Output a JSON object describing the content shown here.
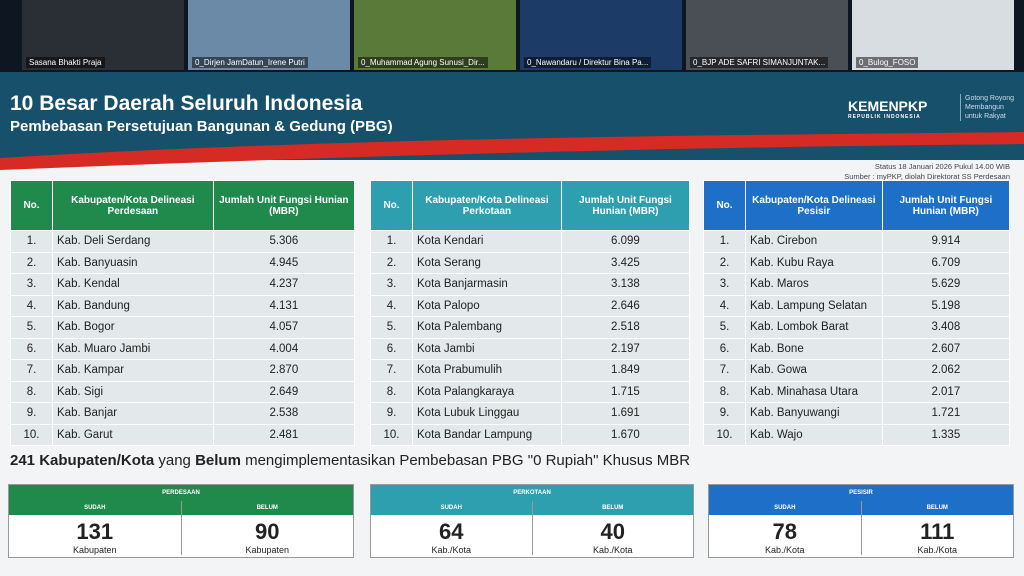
{
  "participants": [
    "Sasana Bhakti Praja",
    "0_Dirjen JamDatun_Irene Putri",
    "0_Muhammad Agung Sunusi_Dir...",
    "0_Nawandaru / Direktur Bina Pa...",
    "0_BJP ADE SAFRI SIMANJUNTAK...",
    "0_Bulog_FOSO"
  ],
  "slide": {
    "title": "10 Besar Daerah Seluruh Indonesia",
    "subtitle": "Pembebasan Persetujuan Bangunan & Gedung (PBG)",
    "logo": "KEMENPKP",
    "logo_sub": "REPUBLIK INDONESIA",
    "tagline": [
      "Gotong Royong",
      "Membangun",
      "untuk Rakyat"
    ],
    "status": "Status 18 Januari 2026 Pukul 14.00 WIB",
    "source": "Sumber : myPKP, diolah Direktorat SS Perdesaan",
    "colors": {
      "perdesaan": "#1f8a4c",
      "perkotaan": "#2e9fae",
      "pesisir": "#1e6fc8"
    },
    "tables": [
      {
        "headers": [
          "No.",
          "Kabupaten/Kota Delineasi Perdesaan",
          "Jumlah Unit Fungsi Hunian (MBR)"
        ],
        "rows": [
          [
            "1.",
            "Kab. Deli Serdang",
            "5.306"
          ],
          [
            "2.",
            "Kab. Banyuasin",
            "4.945"
          ],
          [
            "3.",
            "Kab. Kendal",
            "4.237"
          ],
          [
            "4.",
            "Kab. Bandung",
            "4.131"
          ],
          [
            "5.",
            "Kab. Bogor",
            "4.057"
          ],
          [
            "6.",
            "Kab. Muaro Jambi",
            "4.004"
          ],
          [
            "7.",
            "Kab. Kampar",
            "2.870"
          ],
          [
            "8.",
            "Kab. Sigi",
            "2.649"
          ],
          [
            "9.",
            "Kab. Banjar",
            "2.538"
          ],
          [
            "10.",
            "Kab. Garut",
            "2.481"
          ]
        ]
      },
      {
        "headers": [
          "No.",
          "Kabupaten/Kota Delineasi Perkotaan",
          "Jumlah Unit Fungsi Hunian (MBR)"
        ],
        "rows": [
          [
            "1.",
            "Kota Kendari",
            "6.099"
          ],
          [
            "2.",
            "Kota Serang",
            "3.425"
          ],
          [
            "3.",
            "Kota Banjarmasin",
            "3.138"
          ],
          [
            "4.",
            "Kota Palopo",
            "2.646"
          ],
          [
            "5.",
            "Kota Palembang",
            "2.518"
          ],
          [
            "6.",
            "Kota Jambi",
            "2.197"
          ],
          [
            "7.",
            "Kota Prabumulih",
            "1.849"
          ],
          [
            "8.",
            "Kota Palangkaraya",
            "1.715"
          ],
          [
            "9.",
            "Kota Lubuk Linggau",
            "1.691"
          ],
          [
            "10.",
            "Kota Bandar Lampung",
            "1.670"
          ]
        ]
      },
      {
        "headers": [
          "No.",
          "Kabupaten/Kota Delineasi Pesisir",
          "Jumlah Unit Fungsi Hunian (MBR)"
        ],
        "rows": [
          [
            "1.",
            "Kab. Cirebon",
            "9.914"
          ],
          [
            "2.",
            "Kab. Kubu Raya",
            "6.709"
          ],
          [
            "3.",
            "Kab. Maros",
            "5.629"
          ],
          [
            "4.",
            "Kab. Lampung Selatan",
            "5.198"
          ],
          [
            "5.",
            "Kab. Lombok Barat",
            "3.408"
          ],
          [
            "6.",
            "Kab. Bone",
            "2.607"
          ],
          [
            "7.",
            "Kab. Gowa",
            "2.062"
          ],
          [
            "8.",
            "Kab. Minahasa Utara",
            "2.017"
          ],
          [
            "9.",
            "Kab. Banyuwangi",
            "1.721"
          ],
          [
            "10.",
            "Kab. Wajo",
            "1.335"
          ]
        ]
      }
    ],
    "summary": {
      "a": "241 Kabupaten/Kota",
      "b": " yang ",
      "c": "Belum",
      "d": " mengimplementasikan Pembebasan PBG \"0 Rupiah\" Khusus MBR"
    },
    "boxes": [
      {
        "title": "PERDESAAN",
        "cells": [
          {
            "label": "SUDAH",
            "value": "131",
            "unit": "Kabupaten"
          },
          {
            "label": "BELUM",
            "value": "90",
            "unit": "Kabupaten"
          }
        ]
      },
      {
        "title": "PERKOTAAN",
        "cells": [
          {
            "label": "SUDAH",
            "value": "64",
            "unit": "Kab./Kota"
          },
          {
            "label": "BELUM",
            "value": "40",
            "unit": "Kab./Kota"
          }
        ]
      },
      {
        "title": "PESISIR",
        "cells": [
          {
            "label": "SUDAH",
            "value": "78",
            "unit": "Kab./Kota"
          },
          {
            "label": "BELUM",
            "value": "111",
            "unit": "Kab./Kota"
          }
        ]
      }
    ]
  }
}
